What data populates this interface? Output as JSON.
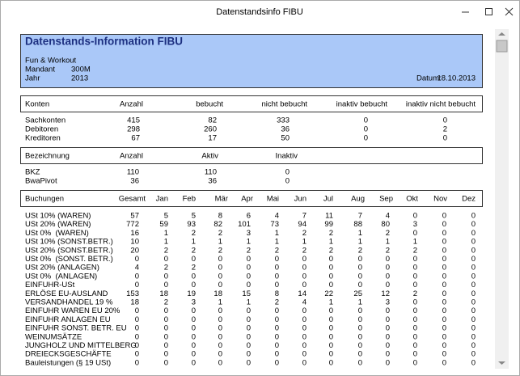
{
  "window": {
    "title": "Datenstandsinfo FIBU"
  },
  "header": {
    "title": "Datenstands-Information FIBU",
    "company": "Fun & Workout",
    "mandant_label": "Mandant",
    "mandant": "300M",
    "jahr_label": "Jahr",
    "jahr": "2013",
    "datum_label": "Datum:",
    "datum": "18.10.2013"
  },
  "konten": {
    "columns": [
      "Konten",
      "Anzahl",
      "bebucht",
      "nicht bebucht",
      "inaktiv bebucht",
      "inaktiv nicht bebucht"
    ],
    "rows": [
      [
        "Sachkonten",
        415,
        82,
        333,
        0,
        0
      ],
      [
        "Debitoren",
        298,
        260,
        36,
        0,
        2
      ],
      [
        "Kreditoren",
        67,
        17,
        50,
        0,
        0
      ]
    ]
  },
  "bezeichnung": {
    "columns": [
      "Bezeichnung",
      "Anzahl",
      "Aktiv",
      "Inaktiv"
    ],
    "rows": [
      [
        "BKZ",
        110,
        110,
        0
      ],
      [
        "BwaPivot",
        36,
        36,
        0
      ]
    ]
  },
  "buchungen": {
    "columns": [
      "Buchungen",
      "Gesamt",
      "Jan",
      "Feb",
      "Mär",
      "Apr",
      "Mai",
      "Jun",
      "Jul",
      "Aug",
      "Sep",
      "Okt",
      "Nov",
      "Dez"
    ],
    "rows": [
      [
        "USt 10% (WAREN)",
        57,
        5,
        5,
        8,
        6,
        4,
        7,
        11,
        7,
        4,
        0,
        0,
        0
      ],
      [
        "USt 20% (WAREN)",
        772,
        59,
        93,
        82,
        101,
        73,
        94,
        99,
        88,
        80,
        3,
        0,
        0
      ],
      [
        "USt 0%  (WAREN)",
        16,
        1,
        2,
        2,
        3,
        1,
        2,
        2,
        1,
        2,
        0,
        0,
        0
      ],
      [
        "USt 10% (SONST.BETR.)",
        10,
        1,
        1,
        1,
        1,
        1,
        1,
        1,
        1,
        1,
        1,
        0,
        0
      ],
      [
        "USt 20% (SONST.BETR.)",
        20,
        2,
        2,
        2,
        2,
        2,
        2,
        2,
        2,
        2,
        2,
        0,
        0
      ],
      [
        "USt 0%  (SONST. BETR.)",
        0,
        0,
        0,
        0,
        0,
        0,
        0,
        0,
        0,
        0,
        0,
        0,
        0
      ],
      [
        "USt 20% (ANLAGEN)",
        4,
        2,
        2,
        0,
        0,
        0,
        0,
        0,
        0,
        0,
        0,
        0,
        0
      ],
      [
        "USt 0%  (ANLAGEN)",
        0,
        0,
        0,
        0,
        0,
        0,
        0,
        0,
        0,
        0,
        0,
        0,
        0
      ],
      [
        "EINFUHR-USt",
        0,
        0,
        0,
        0,
        0,
        0,
        0,
        0,
        0,
        0,
        0,
        0,
        0
      ],
      [
        "ERLÖSE EU-AUSLAND",
        153,
        18,
        19,
        18,
        15,
        8,
        14,
        22,
        25,
        12,
        2,
        0,
        0
      ],
      [
        "VERSANDHANDEL 19 %",
        18,
        2,
        3,
        1,
        1,
        2,
        4,
        1,
        1,
        3,
        0,
        0,
        0
      ],
      [
        "EINFUHR WAREN EU 20%",
        0,
        0,
        0,
        0,
        0,
        0,
        0,
        0,
        0,
        0,
        0,
        0,
        0
      ],
      [
        "EINFUHR ANLAGEN EU",
        0,
        0,
        0,
        0,
        0,
        0,
        0,
        0,
        0,
        0,
        0,
        0,
        0
      ],
      [
        "EINFUHR SONST. BETR. EU",
        0,
        0,
        0,
        0,
        0,
        0,
        0,
        0,
        0,
        0,
        0,
        0,
        0
      ],
      [
        "WEINUMSÄTZE",
        0,
        0,
        0,
        0,
        0,
        0,
        0,
        0,
        0,
        0,
        0,
        0,
        0
      ],
      [
        "JUNGHOLZ UND MITTELBERG",
        0,
        0,
        0,
        0,
        0,
        0,
        0,
        0,
        0,
        0,
        0,
        0,
        0
      ],
      [
        "DREIECKSGESCHÄFTE",
        0,
        0,
        0,
        0,
        0,
        0,
        0,
        0,
        0,
        0,
        0,
        0,
        0
      ],
      [
        "Bauleistungen (§ 19 USt)",
        0,
        0,
        0,
        0,
        0,
        0,
        0,
        0,
        0,
        0,
        0,
        0,
        0
      ]
    ]
  }
}
